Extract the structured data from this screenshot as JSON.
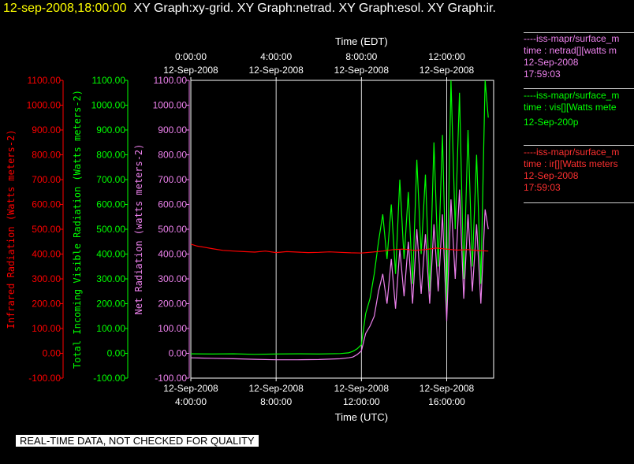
{
  "header": {
    "datetime": "12-sep-2008,18:00:00",
    "graphs": "XY Graph:xy-grid.  XY Graph:netrad.  XY Graph:esol.  XY Graph:ir."
  },
  "legend": [
    {
      "source": "----iss-mapr/surface_m",
      "variable": "time : netrad[][watts m",
      "date": "12-Sep-2008",
      "time": "17:59:03",
      "color": "#ee82ee"
    },
    {
      "source": "----iss-mapr/surface_m",
      "variable": "time : vis[][Watts mete",
      "date": "12-Sep-200p",
      "time": "",
      "color": "#00ff00"
    },
    {
      "source": "----iss-mapr/surface_m",
      "variable": "time : ir[][Watts meters",
      "date": "12-Sep-2008",
      "time": "17:59:03",
      "color": "#ff0000"
    }
  ],
  "footer": "REAL-TIME DATA, NOT CHECKED FOR QUALITY",
  "chart_data": {
    "type": "line",
    "x_unit": "hours UTC on 12-Sep-2008",
    "xlim": [
      4,
      18.2
    ],
    "ylim": [
      -100,
      1100
    ],
    "grid": true,
    "top_axis": {
      "label": "Time (EDT)",
      "ticks": [
        {
          "at": 4,
          "line1": "0:00:00",
          "line2": "12-Sep-2008"
        },
        {
          "at": 8,
          "line1": "4:00:00",
          "line2": "12-Sep-2008"
        },
        {
          "at": 12,
          "line1": "8:00:00",
          "line2": "12-Sep-2008"
        },
        {
          "at": 16,
          "line1": "12:00:00",
          "line2": "12-Sep-2008"
        }
      ]
    },
    "bottom_axis": {
      "label": "Time (UTC)",
      "ticks": [
        {
          "at": 4,
          "line1": "12-Sep-2008",
          "line2": "4:00:00"
        },
        {
          "at": 8,
          "line1": "12-Sep-2008",
          "line2": "8:00:00"
        },
        {
          "at": 12,
          "line1": "12-Sep-2008",
          "line2": "12:00:00"
        },
        {
          "at": 16,
          "line1": "12-Sep-2008",
          "line2": "16:00:00"
        }
      ]
    },
    "y_ticks": [
      "-100.00",
      "0.00",
      "100.00",
      "200.00",
      "300.00",
      "400.00",
      "500.00",
      "600.00",
      "700.00",
      "800.00",
      "900.00",
      "1000.00",
      "1100.00"
    ],
    "y_axes": [
      {
        "label": "Infrared Radiation (Watts meters-2)",
        "color": "#ff0000"
      },
      {
        "label": "Total Incoming Visible Radiation (Watts meters-2)",
        "color": "#00ff00"
      },
      {
        "label": "Net Radiation (watts meters-2)",
        "color": "#ee82ee"
      }
    ],
    "series": [
      {
        "name": "time : vis[][Watts mete",
        "color": "#00ff00",
        "x": [
          4.0,
          5.0,
          6.0,
          7.0,
          8.0,
          9.0,
          10.0,
          11.0,
          11.4,
          11.6,
          11.8,
          12.0,
          12.2,
          12.4,
          12.6,
          12.8,
          13.0,
          13.2,
          13.4,
          13.6,
          13.8,
          14.0,
          14.2,
          14.4,
          14.6,
          14.8,
          15.0,
          15.2,
          15.4,
          15.6,
          15.8,
          16.0,
          16.2,
          16.4,
          16.6,
          16.8,
          17.0,
          17.2,
          17.4,
          17.6,
          17.8,
          17.95
        ],
        "y": [
          -2,
          -3,
          -2,
          -4,
          -3,
          -2,
          -3,
          -1,
          2,
          8,
          18,
          35,
          160,
          220,
          320,
          450,
          560,
          380,
          600,
          320,
          700,
          380,
          650,
          280,
          780,
          400,
          720,
          250,
          850,
          350,
          880,
          180,
          1100,
          500,
          1050,
          300,
          900,
          350,
          800,
          280,
          1100,
          950
        ]
      },
      {
        "name": "time : netrad[][watts m",
        "color": "#ee82ee",
        "x": [
          4.0,
          5.0,
          6.0,
          7.0,
          8.0,
          9.0,
          10.0,
          11.0,
          11.4,
          11.6,
          11.8,
          12.0,
          12.2,
          12.4,
          12.6,
          12.8,
          13.0,
          13.2,
          13.4,
          13.6,
          13.8,
          14.0,
          14.2,
          14.4,
          14.6,
          14.8,
          15.0,
          15.2,
          15.4,
          15.6,
          15.8,
          16.0,
          16.2,
          16.4,
          16.6,
          16.8,
          17.0,
          17.2,
          17.4,
          17.6,
          17.8,
          17.95
        ],
        "y": [
          -18,
          -20,
          -22,
          -24,
          -26,
          -26,
          -25,
          -22,
          -18,
          -15,
          -5,
          10,
          80,
          110,
          150,
          250,
          320,
          200,
          380,
          180,
          420,
          230,
          450,
          200,
          500,
          240,
          480,
          200,
          520,
          250,
          560,
          130,
          620,
          300,
          660,
          220,
          560,
          250,
          520,
          200,
          580,
          500
        ]
      },
      {
        "name": "time : ir[][Watts meters",
        "color": "#ff0000",
        "x": [
          4.0,
          4.3,
          4.6,
          5.0,
          5.5,
          6.0,
          6.5,
          7.0,
          7.5,
          8.0,
          8.5,
          9.0,
          9.5,
          10.0,
          10.5,
          11.0,
          11.5,
          12.0,
          12.5,
          13.0,
          13.5,
          14.0,
          14.5,
          15.0,
          15.5,
          16.0,
          16.5,
          17.0,
          17.5,
          17.95
        ],
        "y": [
          440,
          432,
          428,
          422,
          415,
          412,
          410,
          408,
          412,
          406,
          410,
          408,
          406,
          407,
          409,
          407,
          405,
          404,
          408,
          412,
          418,
          420,
          415,
          418,
          424,
          420,
          416,
          418,
          414,
          412
        ]
      }
    ]
  }
}
